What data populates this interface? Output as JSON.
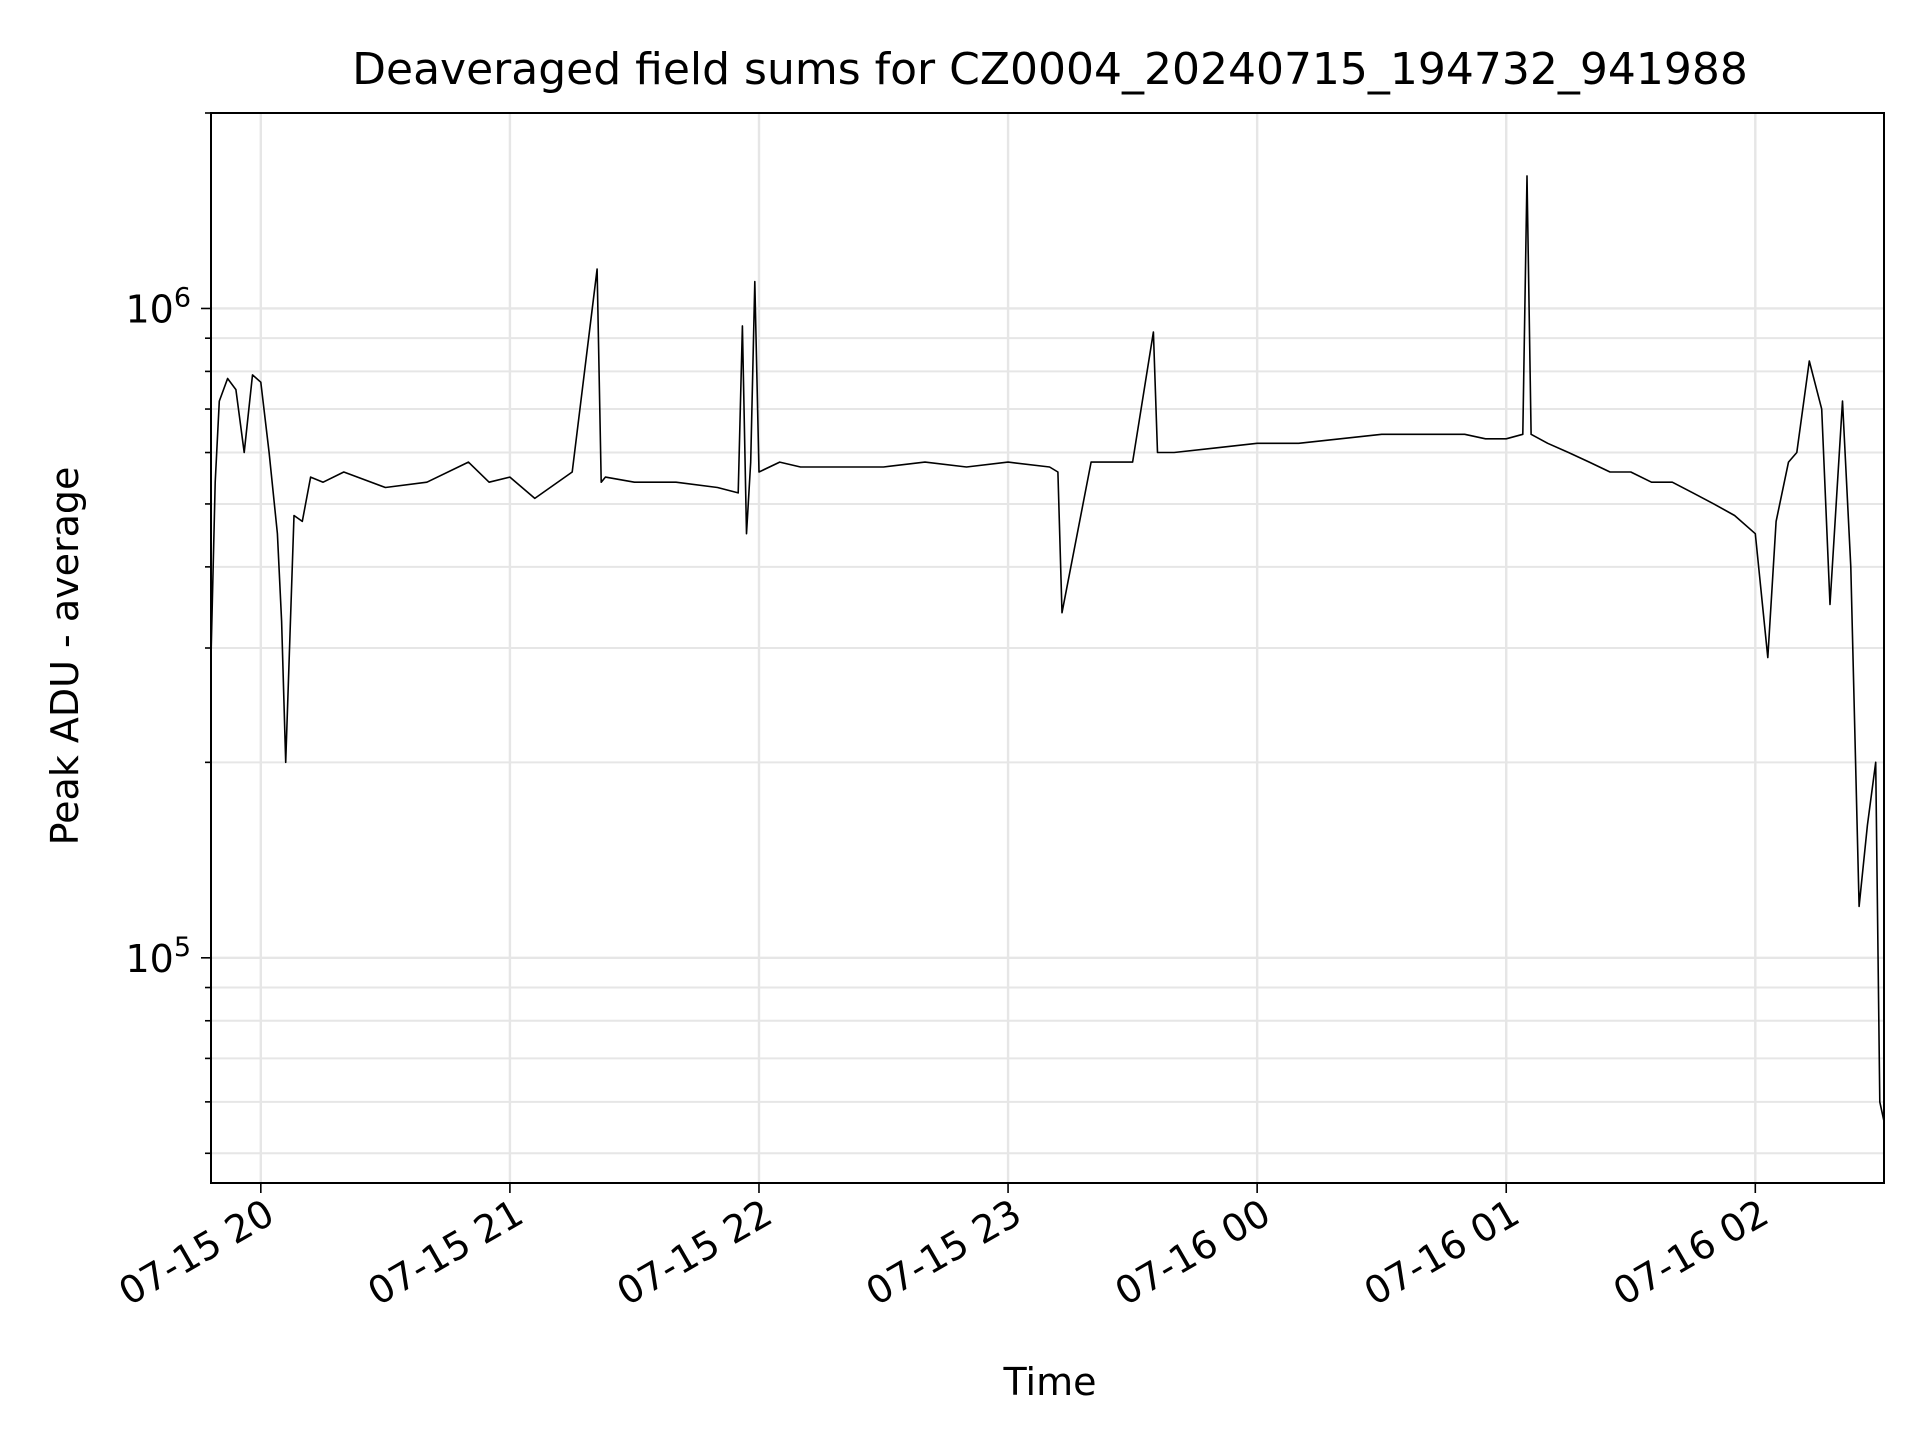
{
  "chart_data": {
    "type": "line",
    "title": "Deaveraged field sums for CZ0004_20240715_194732_941988",
    "xlabel": "Time",
    "ylabel": "Peak ADU - average",
    "y_scale": "log",
    "ylim": [
      45000,
      2000000
    ],
    "xlim": [
      "2024-07-15 19:48",
      "2024-07-16 02:31"
    ],
    "x_ticks": [
      "2024-07-15 20:00",
      "2024-07-15 21:00",
      "2024-07-15 22:00",
      "2024-07-15 23:00",
      "2024-07-16 00:00",
      "2024-07-16 01:00",
      "2024-07-16 02:00"
    ],
    "x_tick_labels": [
      "07-15 20",
      "07-15 21",
      "07-15 22",
      "07-15 23",
      "07-16 00",
      "07-16 01",
      "07-16 02"
    ],
    "y_tick_labels": [
      {
        "value": 100000,
        "base": "10",
        "exp": "5"
      },
      {
        "value": 1000000,
        "base": "10",
        "exp": "6"
      }
    ],
    "grid": true,
    "legend": "none",
    "line_color": "#000000",
    "grid_color": "#e6e6e6",
    "series": [
      {
        "x": [
          "2024-07-15 19:48",
          "2024-07-15 19:49",
          "2024-07-15 19:50",
          "2024-07-15 19:52",
          "2024-07-15 19:54",
          "2024-07-15 19:56",
          "2024-07-15 19:58",
          "2024-07-15 20:00",
          "2024-07-15 20:02",
          "2024-07-15 20:04",
          "2024-07-15 20:05",
          "2024-07-15 20:06",
          "2024-07-15 20:08",
          "2024-07-15 20:10",
          "2024-07-15 20:12",
          "2024-07-15 20:15",
          "2024-07-15 20:20",
          "2024-07-15 20:30",
          "2024-07-15 20:40",
          "2024-07-15 20:50",
          "2024-07-15 20:55",
          "2024-07-15 21:00",
          "2024-07-15 21:06",
          "2024-07-15 21:15",
          "2024-07-15 21:21",
          "2024-07-15 21:22",
          "2024-07-15 21:23",
          "2024-07-15 21:30",
          "2024-07-15 21:40",
          "2024-07-15 21:50",
          "2024-07-15 21:55",
          "2024-07-15 21:56",
          "2024-07-15 21:57",
          "2024-07-15 21:58",
          "2024-07-15 21:59",
          "2024-07-15 22:00",
          "2024-07-15 22:05",
          "2024-07-15 22:10",
          "2024-07-15 22:20",
          "2024-07-15 22:30",
          "2024-07-15 22:40",
          "2024-07-15 22:50",
          "2024-07-15 23:00",
          "2024-07-15 23:10",
          "2024-07-15 23:12",
          "2024-07-15 23:13",
          "2024-07-15 23:20",
          "2024-07-15 23:30",
          "2024-07-15 23:35",
          "2024-07-15 23:36",
          "2024-07-15 23:40",
          "2024-07-15 23:50",
          "2024-07-16 00:00",
          "2024-07-16 00:10",
          "2024-07-16 00:20",
          "2024-07-16 00:30",
          "2024-07-16 00:40",
          "2024-07-16 00:45",
          "2024-07-16 00:50",
          "2024-07-16 00:55",
          "2024-07-16 01:00",
          "2024-07-16 01:04",
          "2024-07-16 01:05",
          "2024-07-16 01:06",
          "2024-07-16 01:10",
          "2024-07-16 01:15",
          "2024-07-16 01:20",
          "2024-07-16 01:25",
          "2024-07-16 01:30",
          "2024-07-16 01:35",
          "2024-07-16 01:40",
          "2024-07-16 01:45",
          "2024-07-16 01:50",
          "2024-07-16 01:55",
          "2024-07-16 02:00",
          "2024-07-16 02:03",
          "2024-07-16 02:05",
          "2024-07-16 02:08",
          "2024-07-16 02:10",
          "2024-07-16 02:13",
          "2024-07-16 02:16",
          "2024-07-16 02:18",
          "2024-07-16 02:21",
          "2024-07-16 02:23",
          "2024-07-16 02:25",
          "2024-07-16 02:27",
          "2024-07-16 02:29",
          "2024-07-16 02:30",
          "2024-07-16 02:31"
        ],
        "y": [
          290000,
          540000,
          720000,
          780000,
          750000,
          600000,
          790000,
          770000,
          600000,
          450000,
          330000,
          200000,
          480000,
          470000,
          550000,
          540000,
          560000,
          530000,
          540000,
          580000,
          540000,
          550000,
          510000,
          560000,
          1150000,
          540000,
          550000,
          540000,
          540000,
          530000,
          520000,
          940000,
          450000,
          580000,
          1100000,
          560000,
          580000,
          570000,
          570000,
          570000,
          580000,
          570000,
          580000,
          570000,
          560000,
          340000,
          580000,
          580000,
          920000,
          600000,
          600000,
          610000,
          620000,
          620000,
          630000,
          640000,
          640000,
          640000,
          640000,
          630000,
          630000,
          640000,
          1600000,
          640000,
          620000,
          600000,
          580000,
          560000,
          560000,
          540000,
          540000,
          520000,
          500000,
          480000,
          450000,
          290000,
          470000,
          580000,
          600000,
          830000,
          700000,
          350000,
          720000,
          400000,
          120000,
          160000,
          200000,
          60000,
          56000
        ]
      }
    ]
  }
}
